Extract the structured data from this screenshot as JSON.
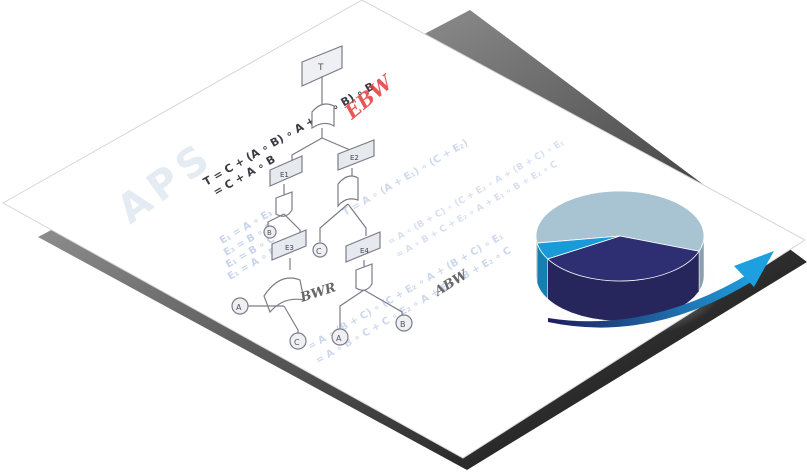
{
  "watermark": "APS",
  "formulas": {
    "top_line1": "T = C + (A ∘ B) ∘ A + (A ∘ B) ∘ B",
    "top_line2": "= C + A ∘ B",
    "left_lines": [
      "E₁ = A ∘ E₃",
      "E₃ = B ∘ C",
      "E₁ = B ∘ C",
      "E₁ = A ∘ B"
    ],
    "e2_line": "T = A ∘ (A + E₁) ∘ (C + E₂)",
    "e4_line1": "= A ∘ (B + C) ∘ (C + E₂ ∘ A + (B + C) ∘ E₁",
    "e4_line2": "= A ∘ B + C + E₂ ∘ A + E₁ ∘ B + E₂ ∘ C",
    "bottom_line1": "= A ∘ (B + C) ∘ (C + E₂ ∘ A + (B + C) ∘ E₁",
    "bottom_line2": "= A ∘ B ∘ C + C ∘ E₂ ∘ A + E₁ ∘ B + E₂ ∘ C"
  },
  "tree": {
    "top": "T",
    "gates": [
      "E1",
      "E2",
      "E3",
      "E4"
    ],
    "events": [
      "C",
      "A",
      "B",
      "C",
      "A",
      "B"
    ]
  },
  "notes": {
    "red_note": "EBW",
    "gray_note1": "BWR",
    "gray_note2": "ABW"
  },
  "chart_data": {
    "type": "pie",
    "style": "3d",
    "slices": [
      {
        "value": 58,
        "color": "#a8c4d3"
      },
      {
        "value": 36,
        "color": "#2e2e72"
      },
      {
        "value": 6,
        "color": "#1a9bd8"
      }
    ]
  },
  "colors": {
    "arrow_start": "#1e1e5a",
    "arrow_end": "#1ea0e0"
  }
}
